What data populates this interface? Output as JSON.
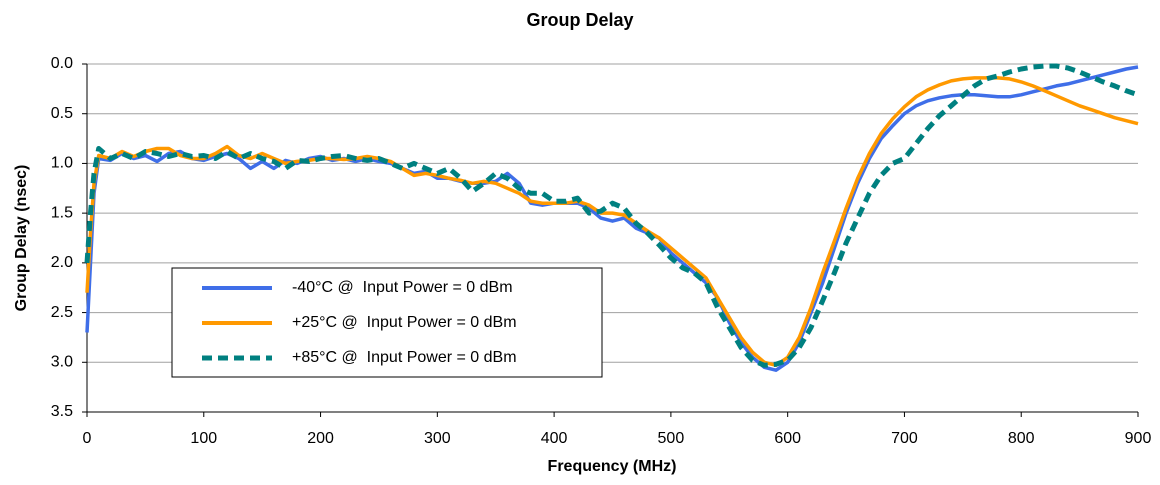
{
  "chart_data": {
    "type": "line",
    "title": "Group Delay",
    "x_label": "Frequency (MHz)",
    "y_label": "Group Delay (nsec)",
    "xlim": [
      0,
      900
    ],
    "xticks": [
      0,
      100,
      200,
      300,
      400,
      500,
      600,
      700,
      800,
      900
    ],
    "ylim": [
      3.5,
      0
    ],
    "yticks": [
      {
        "value": 0,
        "label": "0.0"
      },
      0.5,
      {
        "value": 1,
        "label": "1.0"
      },
      1.5,
      {
        "value": 2,
        "label": "2.0"
      },
      2.5,
      {
        "value": 3,
        "label": "3.0"
      },
      3.5
    ],
    "grid": true,
    "legend_position": "lower-left",
    "x": [
      0,
      3,
      6,
      10,
      20,
      30,
      40,
      50,
      60,
      70,
      80,
      90,
      100,
      110,
      120,
      130,
      140,
      150,
      160,
      170,
      180,
      190,
      200,
      210,
      220,
      230,
      240,
      250,
      260,
      270,
      280,
      290,
      300,
      310,
      320,
      330,
      340,
      350,
      360,
      370,
      380,
      390,
      400,
      410,
      420,
      430,
      440,
      450,
      460,
      470,
      480,
      490,
      500,
      510,
      520,
      530,
      540,
      550,
      560,
      570,
      580,
      590,
      600,
      610,
      620,
      630,
      640,
      650,
      660,
      670,
      680,
      690,
      700,
      710,
      720,
      730,
      740,
      750,
      760,
      770,
      780,
      790,
      800,
      810,
      820,
      830,
      840,
      850,
      860,
      870,
      880,
      890,
      900
    ],
    "series": [
      {
        "name": "-40°C @  Input Power = 0 dBm",
        "color": "#3f6ee8",
        "dashed": false,
        "values": [
          2.7,
          2.0,
          1.3,
          0.95,
          0.97,
          0.9,
          0.95,
          0.92,
          0.98,
          0.9,
          0.88,
          0.95,
          0.97,
          0.93,
          0.9,
          0.95,
          1.05,
          0.98,
          1.05,
          0.97,
          1.0,
          0.95,
          0.93,
          0.97,
          0.95,
          0.98,
          0.95,
          0.98,
          1.0,
          1.05,
          1.1,
          1.08,
          1.15,
          1.15,
          1.18,
          1.2,
          1.2,
          1.18,
          1.1,
          1.2,
          1.4,
          1.42,
          1.4,
          1.4,
          1.4,
          1.45,
          1.55,
          1.58,
          1.55,
          1.65,
          1.7,
          1.75,
          1.9,
          2.0,
          2.1,
          2.2,
          2.35,
          2.6,
          2.8,
          2.95,
          3.05,
          3.08,
          3.0,
          2.8,
          2.5,
          2.2,
          1.85,
          1.5,
          1.2,
          0.95,
          0.75,
          0.62,
          0.5,
          0.42,
          0.37,
          0.34,
          0.32,
          0.31,
          0.31,
          0.32,
          0.33,
          0.33,
          0.31,
          0.28,
          0.25,
          0.22,
          0.2,
          0.17,
          0.14,
          0.11,
          0.08,
          0.05,
          0.03
        ]
      },
      {
        "name": "+25°C @  Input Power = 0 dBm",
        "color": "#ff9900",
        "dashed": false,
        "values": [
          2.3,
          1.7,
          1.2,
          0.92,
          0.95,
          0.88,
          0.93,
          0.88,
          0.85,
          0.85,
          0.92,
          0.95,
          0.95,
          0.9,
          0.83,
          0.92,
          0.95,
          0.9,
          0.95,
          1.0,
          0.98,
          0.97,
          0.95,
          0.95,
          0.96,
          0.95,
          0.93,
          0.95,
          0.98,
          1.05,
          1.12,
          1.1,
          1.12,
          1.15,
          1.17,
          1.2,
          1.18,
          1.2,
          1.25,
          1.3,
          1.38,
          1.4,
          1.4,
          1.4,
          1.38,
          1.42,
          1.5,
          1.5,
          1.52,
          1.6,
          1.68,
          1.75,
          1.85,
          1.95,
          2.05,
          2.15,
          2.35,
          2.55,
          2.75,
          2.9,
          3.0,
          3.03,
          2.95,
          2.75,
          2.45,
          2.1,
          1.78,
          1.45,
          1.15,
          0.9,
          0.7,
          0.55,
          0.43,
          0.33,
          0.26,
          0.21,
          0.17,
          0.15,
          0.14,
          0.14,
          0.14,
          0.15,
          0.18,
          0.22,
          0.27,
          0.32,
          0.37,
          0.42,
          0.46,
          0.5,
          0.54,
          0.57,
          0.6
        ]
      },
      {
        "name": "+85°C @  Input Power = 0 dBm",
        "color": "#008080",
        "dashed": true,
        "values": [
          2.0,
          1.5,
          1.1,
          0.85,
          0.95,
          0.9,
          0.95,
          0.88,
          0.9,
          0.93,
          0.9,
          0.93,
          0.92,
          0.95,
          0.88,
          0.95,
          0.9,
          0.95,
          0.98,
          1.05,
          0.97,
          0.98,
          0.95,
          0.93,
          0.92,
          0.95,
          0.97,
          0.95,
          1.0,
          1.05,
          1.0,
          1.05,
          1.1,
          1.05,
          1.15,
          1.28,
          1.2,
          1.1,
          1.15,
          1.25,
          1.3,
          1.3,
          1.38,
          1.38,
          1.35,
          1.5,
          1.48,
          1.4,
          1.45,
          1.6,
          1.7,
          1.82,
          1.95,
          2.05,
          2.1,
          2.2,
          2.45,
          2.65,
          2.85,
          2.98,
          3.03,
          3.02,
          2.98,
          2.85,
          2.65,
          2.38,
          2.1,
          1.8,
          1.55,
          1.3,
          1.12,
          1.0,
          0.95,
          0.8,
          0.65,
          0.52,
          0.42,
          0.32,
          0.22,
          0.15,
          0.12,
          0.08,
          0.05,
          0.03,
          0.02,
          0.02,
          0.04,
          0.08,
          0.13,
          0.18,
          0.22,
          0.27,
          0.31
        ]
      }
    ]
  }
}
